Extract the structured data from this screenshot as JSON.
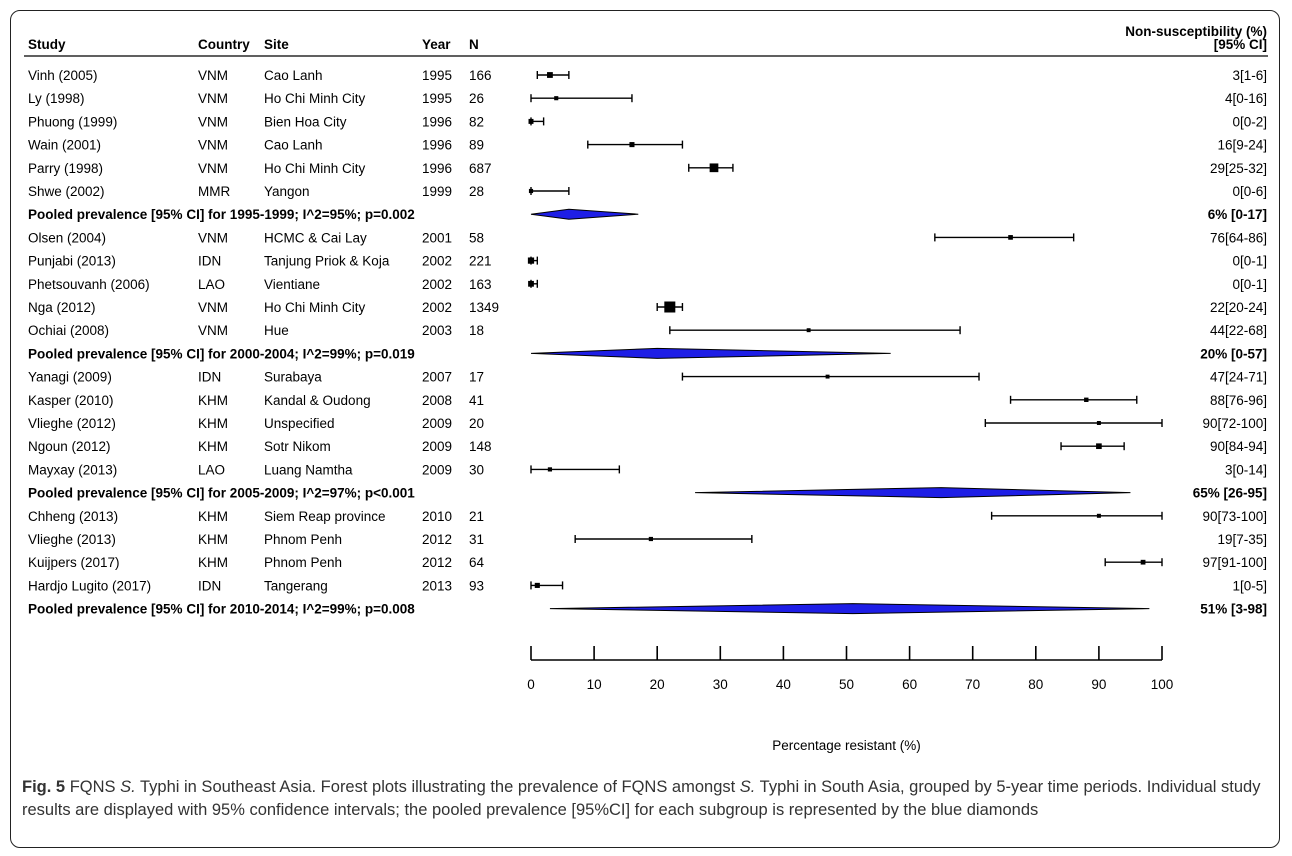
{
  "header": {
    "study": "Study",
    "country": "Country",
    "site": "Site",
    "year": "Year",
    "n": "N",
    "ns_line1": "Non-susceptibility (%)",
    "ns_line2": "[95% CI]"
  },
  "caption": {
    "fig_label": "Fig. 5",
    "part1": "FQNS ",
    "italic1": "S.",
    "part2": " Typhi in Southeast Asia. Forest plots illustrating the prevalence of FQNS amongst ",
    "italic2": "S.",
    "part3": " Typhi in South Asia, grouped by 5-year time periods. Individual study results are displayed with 95% confidence intervals; the pooled prevalence [95%CI] for each subgroup is represented by the blue diamonds"
  },
  "chart_data": {
    "type": "forest",
    "xlabel": "Percentage resistant (%)",
    "xlim": [
      0,
      100
    ],
    "xticks": [
      0,
      10,
      20,
      30,
      40,
      50,
      60,
      70,
      80,
      90,
      100
    ],
    "diamond_color": "#1e1ee6",
    "rows": [
      {
        "kind": "study",
        "study": "Vinh (2005)",
        "country": "VNM",
        "site": "Cao Lanh",
        "year": "1995",
        "n": "166",
        "est": 3,
        "lo": 1,
        "hi": 6,
        "label": "3[1-6]"
      },
      {
        "kind": "study",
        "study": "Ly (1998)",
        "country": "VNM",
        "site": "Ho Chi Minh City",
        "year": "1995",
        "n": "26",
        "est": 4,
        "lo": 0,
        "hi": 16,
        "label": "4[0-16]"
      },
      {
        "kind": "study",
        "study": "Phuong (1999)",
        "country": "VNM",
        "site": "Bien Hoa City",
        "year": "1996",
        "n": "82",
        "est": 0,
        "lo": 0,
        "hi": 2,
        "label": "0[0-2]"
      },
      {
        "kind": "study",
        "study": "Wain (2001)",
        "country": "VNM",
        "site": "Cao Lanh",
        "year": "1996",
        "n": "89",
        "est": 16,
        "lo": 9,
        "hi": 24,
        "label": "16[9-24]"
      },
      {
        "kind": "study",
        "study": "Parry (1998)",
        "country": "VNM",
        "site": "Ho Chi Minh City",
        "year": "1996",
        "n": "687",
        "est": 29,
        "lo": 25,
        "hi": 32,
        "label": "29[25-32]"
      },
      {
        "kind": "study",
        "study": "Shwe (2002)",
        "country": "MMR",
        "site": "Yangon",
        "year": "1999",
        "n": "28",
        "est": 0,
        "lo": 0,
        "hi": 6,
        "label": "0[0-6]"
      },
      {
        "kind": "pooled",
        "text": "Pooled prevalence [95% CI] for 1995-1999; I^2=95%; p=0.002",
        "est": 6,
        "lo": 0,
        "hi": 17,
        "label": "6% [0-17]"
      },
      {
        "kind": "study",
        "study": "Olsen (2004)",
        "country": "VNM",
        "site": "HCMC & Cai Lay",
        "year": "2001",
        "n": "58",
        "est": 76,
        "lo": 64,
        "hi": 86,
        "label": "76[64-86]"
      },
      {
        "kind": "study",
        "study": "Punjabi (2013)",
        "country": "IDN",
        "site": "Tanjung Priok & Koja",
        "year": "2002",
        "n": "221",
        "est": 0,
        "lo": 0,
        "hi": 1,
        "label": "0[0-1]"
      },
      {
        "kind": "study",
        "study": "Phetsouvanh (2006)",
        "country": "LAO",
        "site": "Vientiane",
        "year": "2002",
        "n": "163",
        "est": 0,
        "lo": 0,
        "hi": 1,
        "label": "0[0-1]"
      },
      {
        "kind": "study",
        "study": "Nga (2012)",
        "country": "VNM",
        "site": "Ho Chi Minh City",
        "year": "2002",
        "n": "1349",
        "est": 22,
        "lo": 20,
        "hi": 24,
        "label": "22[20-24]"
      },
      {
        "kind": "study",
        "study": "Ochiai (2008)",
        "country": "VNM",
        "site": "Hue",
        "year": "2003",
        "n": "18",
        "est": 44,
        "lo": 22,
        "hi": 68,
        "label": "44[22-68]"
      },
      {
        "kind": "pooled",
        "text": "Pooled prevalence [95% CI] for 2000-2004; I^2=99%; p=0.019",
        "est": 20,
        "lo": 0,
        "hi": 57,
        "label": "20% [0-57]"
      },
      {
        "kind": "study",
        "study": "Yanagi (2009)",
        "country": "IDN",
        "site": "Surabaya",
        "year": "2007",
        "n": "17",
        "est": 47,
        "lo": 24,
        "hi": 71,
        "label": "47[24-71]"
      },
      {
        "kind": "study",
        "study": "Kasper (2010)",
        "country": "KHM",
        "site": "Kandal & Oudong",
        "year": "2008",
        "n": "41",
        "est": 88,
        "lo": 76,
        "hi": 96,
        "label": "88[76-96]"
      },
      {
        "kind": "study",
        "study": "Vlieghe (2012)",
        "country": "KHM",
        "site": "Unspecified",
        "year": "2009",
        "n": "20",
        "est": 90,
        "lo": 72,
        "hi": 100,
        "label": "90[72-100]"
      },
      {
        "kind": "study",
        "study": "Ngoun (2012)",
        "country": "KHM",
        "site": "Sotr Nikom",
        "year": "2009",
        "n": "148",
        "est": 90,
        "lo": 84,
        "hi": 94,
        "label": "90[84-94]"
      },
      {
        "kind": "study",
        "study": "Mayxay (2013)",
        "country": "LAO",
        "site": "Luang Namtha",
        "year": "2009",
        "n": "30",
        "est": 3,
        "lo": 0,
        "hi": 14,
        "label": "3[0-14]"
      },
      {
        "kind": "pooled",
        "text": "Pooled prevalence [95% CI] for 2005-2009; I^2=97%; p<0.001",
        "est": 65,
        "lo": 26,
        "hi": 95,
        "label": "65% [26-95]"
      },
      {
        "kind": "study",
        "study": "Chheng (2013)",
        "country": "KHM",
        "site": "Siem Reap province",
        "year": "2010",
        "n": "21",
        "est": 90,
        "lo": 73,
        "hi": 100,
        "label": "90[73-100]"
      },
      {
        "kind": "study",
        "study": "Vlieghe (2013)",
        "country": "KHM",
        "site": "Phnom Penh",
        "year": "2012",
        "n": "31",
        "est": 19,
        "lo": 7,
        "hi": 35,
        "label": "19[7-35]"
      },
      {
        "kind": "study",
        "study": "Kuijpers (2017)",
        "country": "KHM",
        "site": "Phnom Penh",
        "year": "2012",
        "n": "64",
        "est": 97,
        "lo": 91,
        "hi": 100,
        "label": "97[91-100]"
      },
      {
        "kind": "study",
        "study": "Hardjo Lugito (2017)",
        "country": "IDN",
        "site": "Tangerang",
        "year": "2013",
        "n": "93",
        "est": 1,
        "lo": 0,
        "hi": 5,
        "label": "1[0-5]"
      },
      {
        "kind": "pooled",
        "text": "Pooled prevalence [95% CI] for 2010-2014; I^2=99%; p=0.008",
        "est": 51,
        "lo": 3,
        "hi": 98,
        "label": "51% [3-98]"
      }
    ]
  }
}
